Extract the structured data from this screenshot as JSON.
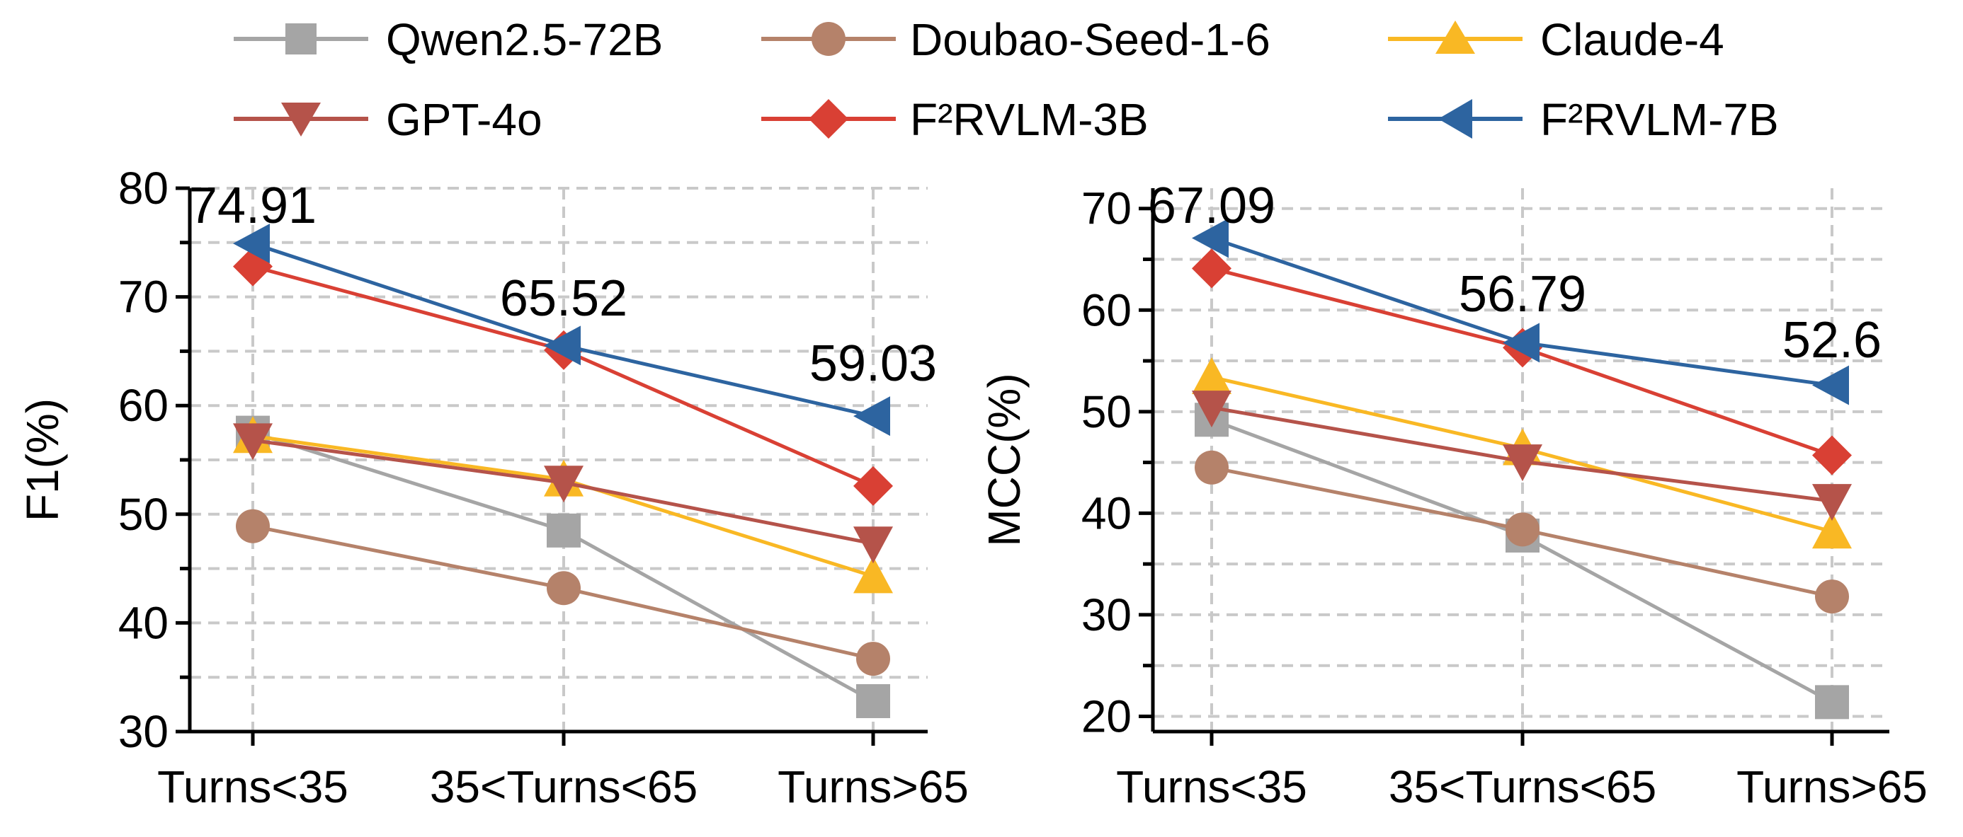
{
  "legend": [
    {
      "label": "Qwen2.5-72B",
      "color": "#a5a5a5",
      "marker": "square"
    },
    {
      "label": "Doubao-Seed-1-6",
      "color": "#b5826a",
      "marker": "circle"
    },
    {
      "label": "Claude-4",
      "color": "#f9b824",
      "marker": "triangle-up"
    },
    {
      "label": "GPT-4o",
      "color": "#b5534a",
      "marker": "triangle-down"
    },
    {
      "label": "F²RVLM-3B",
      "color": "#d94034",
      "marker": "diamond"
    },
    {
      "label": "F²RVLM-7B",
      "color": "#2d64a0",
      "marker": "triangle-left"
    }
  ],
  "chart_data": [
    {
      "type": "line",
      "ylabel": "F1(%)",
      "xlabel": "",
      "categories": [
        "Turns<35",
        "35<Turns<65",
        "Turns>65"
      ],
      "ylim": [
        30,
        80
      ],
      "yticks": [
        30,
        40,
        50,
        60,
        70,
        80
      ],
      "grid": true,
      "legend_placement": "top",
      "series": [
        {
          "name": "Qwen2.5-72B",
          "values": [
            57.5,
            48.5,
            32.8
          ]
        },
        {
          "name": "Doubao-Seed-1-6",
          "values": [
            48.9,
            43.2,
            36.7
          ]
        },
        {
          "name": "Claude-4",
          "values": [
            57.2,
            53.2,
            44.3
          ]
        },
        {
          "name": "GPT-4o",
          "values": [
            56.8,
            52.9,
            47.3
          ]
        },
        {
          "name": "F²RVLM-3B",
          "values": [
            72.8,
            65.1,
            52.6
          ]
        },
        {
          "name": "F²RVLM-7B",
          "values": [
            74.91,
            65.52,
            59.03
          ]
        }
      ],
      "annotations": [
        "74.91",
        "65.52",
        "59.03"
      ]
    },
    {
      "type": "line",
      "ylabel": "MCC(%)",
      "xlabel": "",
      "categories": [
        "Turns<35",
        "35<Turns<65",
        "Turns>65"
      ],
      "ylim": [
        18.5,
        72
      ],
      "yticks": [
        20,
        30,
        40,
        50,
        60,
        70
      ],
      "grid": true,
      "legend_placement": "top",
      "series": [
        {
          "name": "Qwen2.5-72B",
          "values": [
            49.2,
            37.8,
            21.4
          ]
        },
        {
          "name": "Doubao-Seed-1-6",
          "values": [
            44.5,
            38.4,
            31.8
          ]
        },
        {
          "name": "Claude-4",
          "values": [
            53.4,
            46.4,
            38.2
          ]
        },
        {
          "name": "GPT-4o",
          "values": [
            50.4,
            45.1,
            41.2
          ]
        },
        {
          "name": "F²RVLM-3B",
          "values": [
            64.1,
            56.3,
            45.7
          ]
        },
        {
          "name": "F²RVLM-7B",
          "values": [
            67.09,
            56.79,
            52.6
          ]
        }
      ],
      "annotations": [
        "67.09",
        "56.79",
        "52.6"
      ]
    }
  ]
}
